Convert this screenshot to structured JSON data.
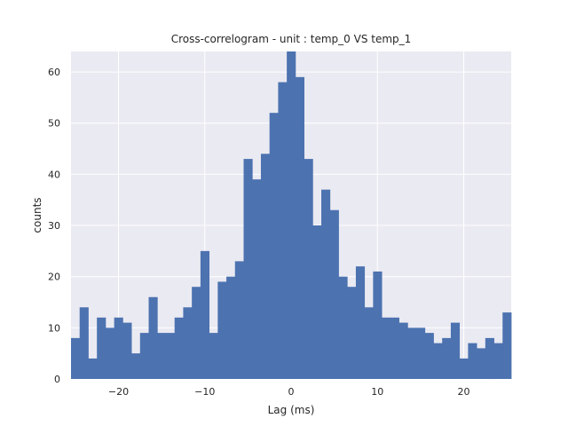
{
  "chart_data": {
    "type": "bar",
    "title": "Cross-correlogram - unit : temp_0 VS temp_1",
    "xlabel": "Lag (ms)",
    "ylabel": "counts",
    "xlim": [
      -25.5,
      25.5
    ],
    "ylim": [
      0,
      64
    ],
    "bin_width": 1,
    "x": [
      -25,
      -24,
      -23,
      -22,
      -21,
      -20,
      -19,
      -18,
      -17,
      -16,
      -15,
      -14,
      -13,
      -12,
      -11,
      -10,
      -9,
      -8,
      -7,
      -6,
      -5,
      -4,
      -3,
      -2,
      -1,
      0,
      1,
      2,
      3,
      4,
      5,
      6,
      7,
      8,
      9,
      10,
      11,
      12,
      13,
      14,
      15,
      16,
      17,
      18,
      19,
      20,
      21,
      22,
      23,
      24,
      25
    ],
    "values": [
      8,
      14,
      4,
      12,
      10,
      12,
      11,
      5,
      9,
      16,
      9,
      9,
      12,
      14,
      18,
      25,
      9,
      19,
      20,
      23,
      43,
      39,
      44,
      52,
      58,
      64,
      59,
      43,
      30,
      37,
      33,
      20,
      18,
      22,
      14,
      21,
      12,
      12,
      11,
      10,
      10,
      9,
      7,
      8,
      11,
      4,
      7,
      6,
      8,
      7,
      13
    ],
    "xticks": [
      -20,
      -10,
      0,
      10,
      20
    ],
    "xtick_labels": [
      "−20",
      "−10",
      "0",
      "10",
      "20"
    ],
    "yticks": [
      0,
      10,
      20,
      30,
      40,
      50,
      60
    ],
    "ytick_labels": [
      "0",
      "10",
      "20",
      "30",
      "40",
      "50",
      "60"
    ],
    "grid": true,
    "colors": {
      "bar": "#4c72b0",
      "plot_bg": "#eaeaf2",
      "grid": "#ffffff"
    }
  }
}
